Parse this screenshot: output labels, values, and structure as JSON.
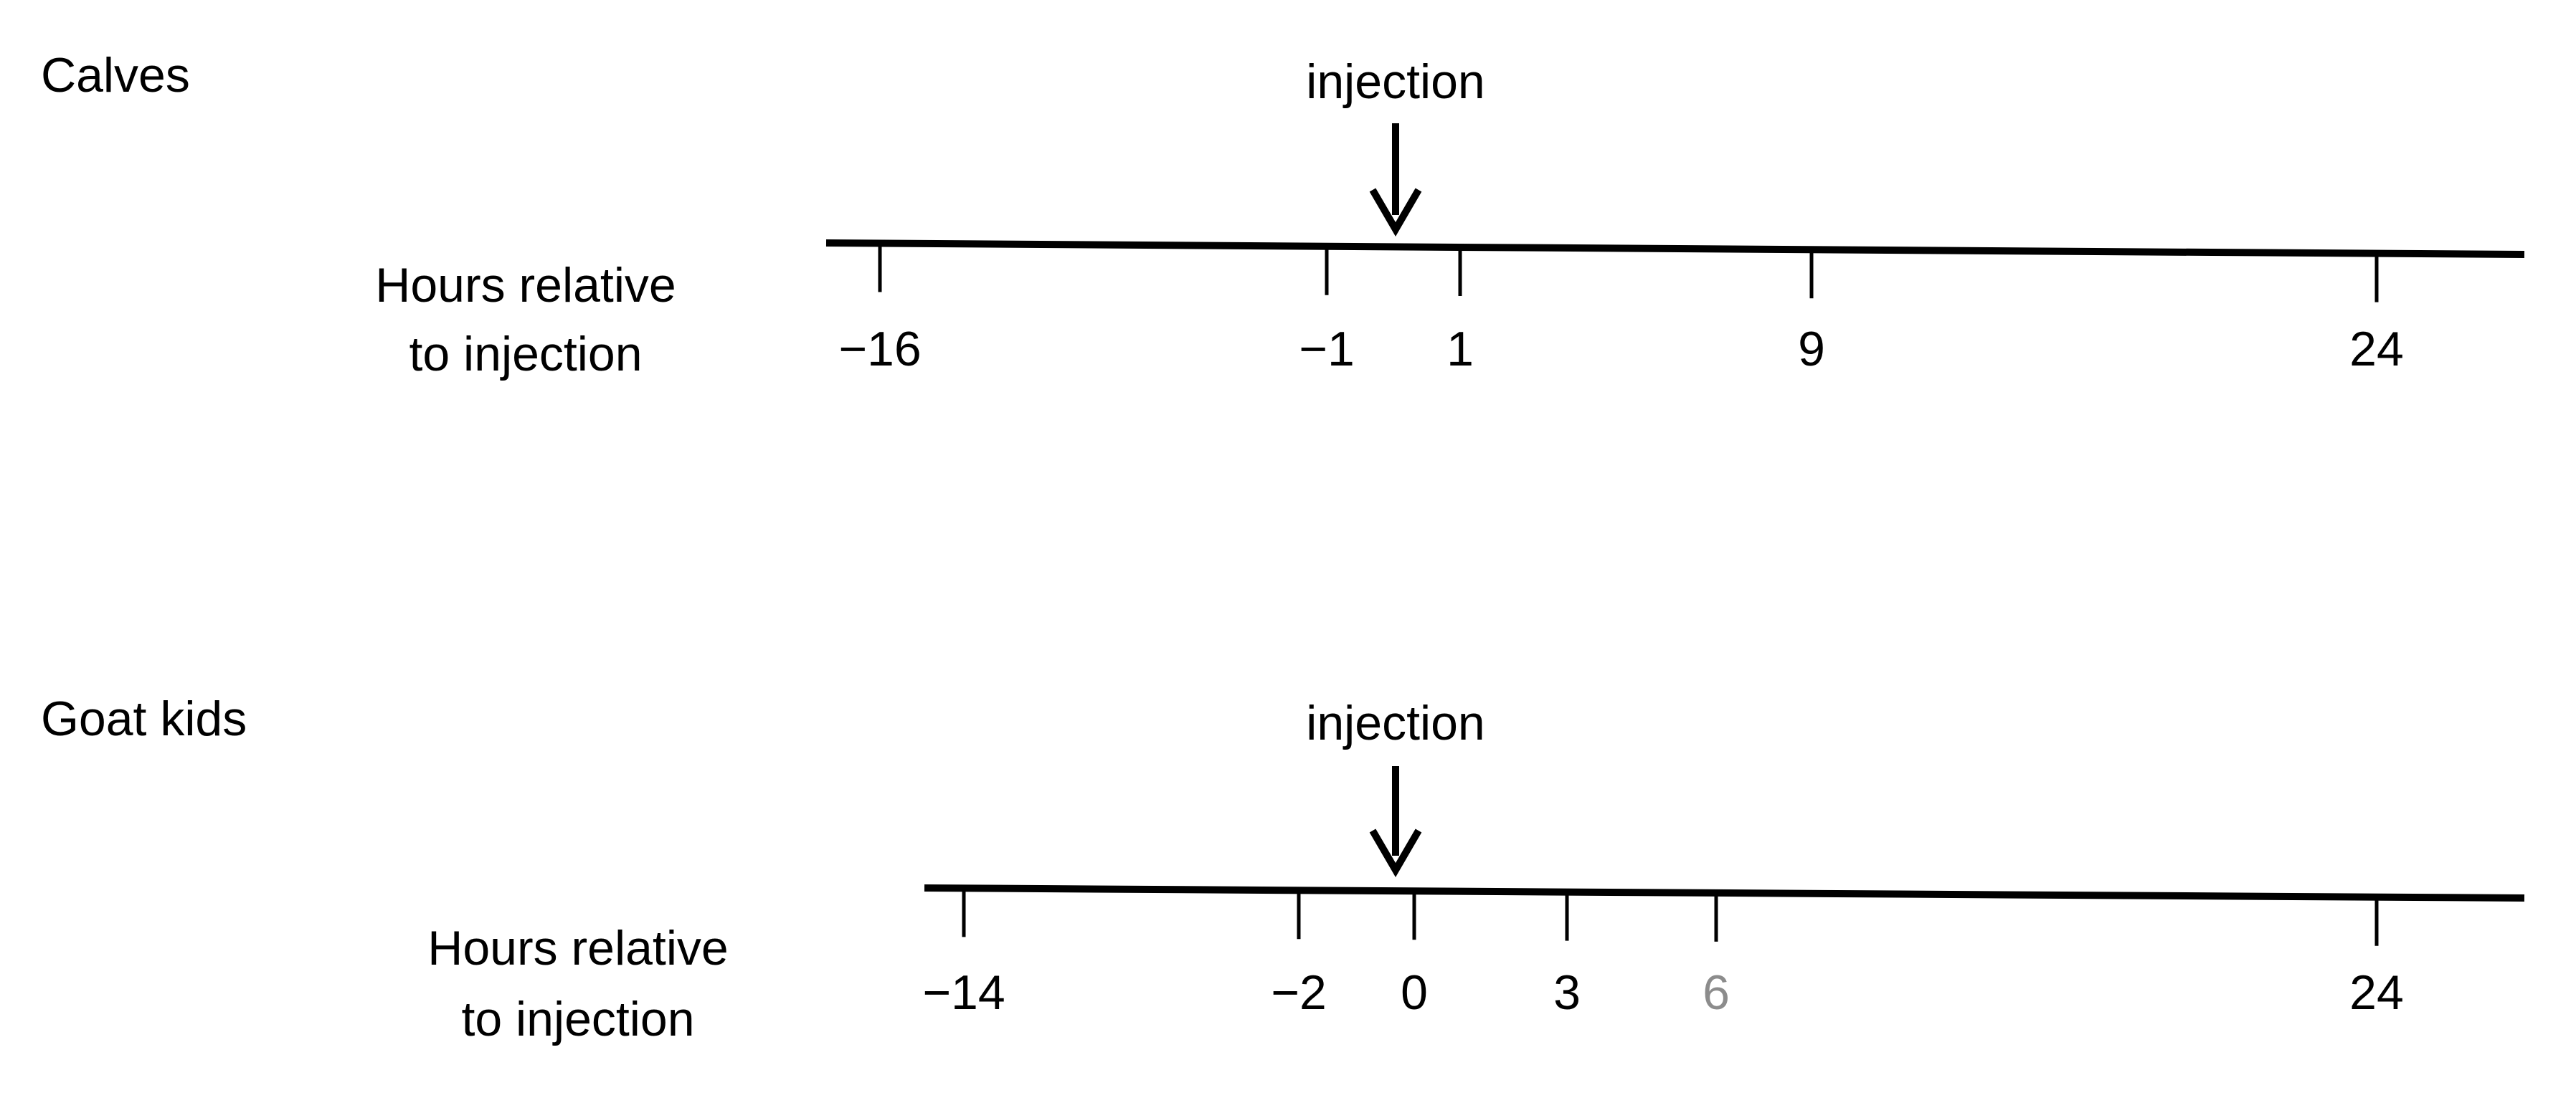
{
  "panels": [
    {
      "title": "Calves",
      "event": "injection",
      "axis_label": [
        "Hours relative",
        "to injection"
      ],
      "ticks": [
        "−16",
        "−1",
        "1",
        "9",
        "24"
      ]
    },
    {
      "title": "Goat kids",
      "event": "injection",
      "axis_label": [
        "Hours relative",
        "to injection"
      ],
      "ticks": [
        "−14",
        "−2",
        "0",
        "3",
        "6",
        "24"
      ]
    }
  ]
}
